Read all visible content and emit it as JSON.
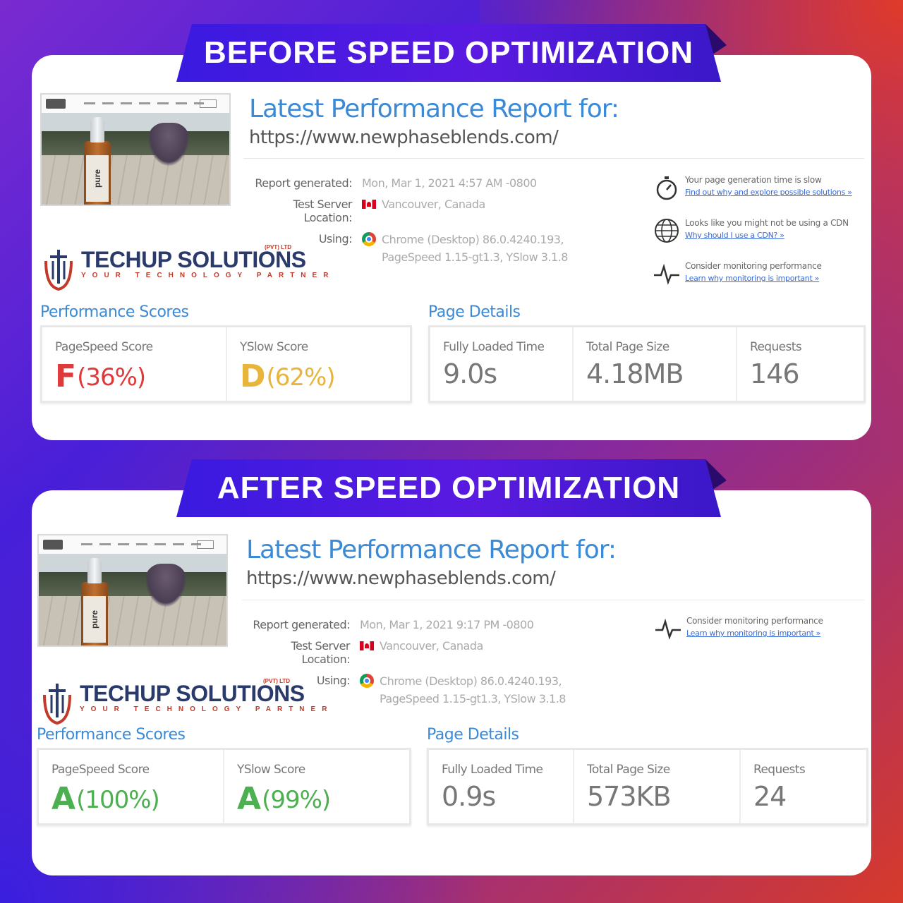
{
  "colors": {
    "bad": "#e0393a",
    "warn": "#e8b43a",
    "good": "#4cb050"
  },
  "before": {
    "banner": "BEFORE SPEED OPTIMIZATION",
    "thumbnail_label": "pure",
    "report_title": "Latest Performance Report for:",
    "url": "https://www.newphaseblends.com/",
    "meta": {
      "generated_label": "Report generated:",
      "generated_value": "Mon, Mar 1, 2021 4:57 AM -0800",
      "location_label": "Test Server Location:",
      "location_value": "Vancouver, Canada",
      "using_label": "Using:",
      "using_value_1": "Chrome (Desktop) 86.0.4240.193,",
      "using_value_2": "PageSpeed 1.15-gt1.3, YSlow 3.1.8"
    },
    "tips": [
      {
        "icon": "stopwatch-icon",
        "text": "Your page generation time is slow",
        "link": "Find out why and explore possible solutions »"
      },
      {
        "icon": "globe-icon",
        "text": "Looks like you might not be using a CDN",
        "link": "Why should I use a CDN? »"
      },
      {
        "icon": "pulse-icon",
        "text": "Consider monitoring performance",
        "link": "Learn why monitoring is important »"
      }
    ],
    "brand": {
      "name": "TECHUP SOLUTIONS",
      "tagline": "YOUR TECHNOLOGY PARTNER",
      "suffix": "(PVT) LTD"
    },
    "scores_title": "Performance Scores",
    "details_title": "Page Details",
    "pagespeed_label": "PageSpeed Score",
    "pagespeed_grade": "F",
    "pagespeed_pct": "(36%)",
    "yslow_label": "YSlow Score",
    "yslow_grade": "D",
    "yslow_pct": "(62%)",
    "loaded_label": "Fully Loaded Time",
    "loaded_value": "9.0s",
    "size_label": "Total Page Size",
    "size_value": "4.18MB",
    "requests_label": "Requests",
    "requests_value": "146"
  },
  "after": {
    "banner": "AFTER SPEED OPTIMIZATION",
    "thumbnail_label": "pure",
    "report_title": "Latest Performance Report for:",
    "url": "https://www.newphaseblends.com/",
    "meta": {
      "generated_label": "Report generated:",
      "generated_value": "Mon, Mar 1, 2021 9:17 PM -0800",
      "location_label": "Test Server Location:",
      "location_value": "Vancouver, Canada",
      "using_label": "Using:",
      "using_value_1": "Chrome (Desktop) 86.0.4240.193,",
      "using_value_2": "PageSpeed 1.15-gt1.3, YSlow 3.1.8"
    },
    "tips": [
      {
        "icon": "pulse-icon",
        "text": "Consider monitoring performance",
        "link": "Learn why monitoring is important »"
      }
    ],
    "brand": {
      "name": "TECHUP SOLUTIONS",
      "tagline": "YOUR TECHNOLOGY PARTNER",
      "suffix": "(PVT) LTD"
    },
    "scores_title": "Performance Scores",
    "details_title": "Page Details",
    "pagespeed_label": "PageSpeed Score",
    "pagespeed_grade": "A",
    "pagespeed_pct": "(100%)",
    "yslow_label": "YSlow Score",
    "yslow_grade": "A",
    "yslow_pct": "(99%)",
    "loaded_label": "Fully Loaded Time",
    "loaded_value": "0.9s",
    "size_label": "Total Page Size",
    "size_value": "573KB",
    "requests_label": "Requests",
    "requests_value": "24"
  }
}
